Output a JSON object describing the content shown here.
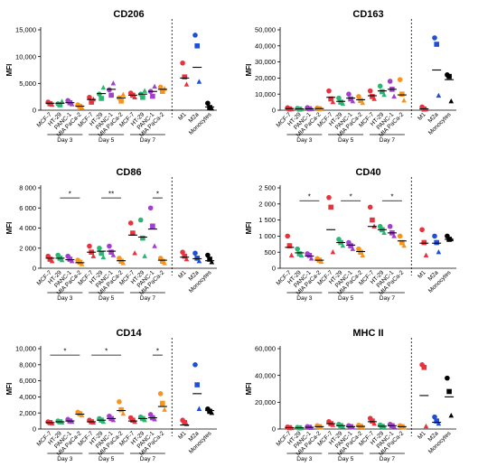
{
  "colors": {
    "MCF-7": "#e8323c",
    "HT-29": "#2bb673",
    "PANC-1": "#a23fcf",
    "MIA PaCa-2": "#f7941d",
    "M1": "#e8323c",
    "M2a": "#1f4fd6",
    "Monocytes": "#000000"
  },
  "chart_data": [
    {
      "type": "scatter",
      "title": "CD206",
      "ylabel": "MFI",
      "ylim": [
        0,
        15000
      ],
      "yticks": [
        0,
        5000,
        10000,
        15000
      ],
      "ytick_labels": [
        "0",
        "5,000",
        "10,000",
        "15,000"
      ],
      "categories": [
        "MCF-7",
        "HT-29",
        "PANC-1",
        "MIA PaCa-2"
      ],
      "groups": [
        "Day 3",
        "Day 5",
        "Day 7"
      ],
      "controls": [
        "M1",
        "M2a",
        "Monocytes"
      ],
      "points": [
        [
          [
            1500,
            1200,
            1000
          ],
          [
            1200,
            1000,
            1600
          ],
          [
            1800,
            1400,
            1100
          ],
          [
            1000,
            700,
            500
          ]
        ],
        [
          [
            2400,
            1500,
            2000
          ],
          [
            3000,
            2200,
            4200
          ],
          [
            3800,
            2800,
            5000
          ],
          [
            2300,
            1700,
            2900
          ]
        ],
        [
          [
            3200,
            2800,
            2400
          ],
          [
            3000,
            2400,
            3600
          ],
          [
            3500,
            2600,
            4400
          ],
          [
            4300,
            3500,
            4000
          ]
        ]
      ],
      "means": [
        [
          1300,
          1300,
          1400,
          750
        ],
        [
          2000,
          3100,
          3900,
          2300
        ],
        [
          2800,
          3000,
          3500,
          3900
        ]
      ],
      "ctrl_points": [
        [
          8800,
          6200,
          4800
        ],
        [
          14000,
          12000,
          5300
        ],
        [
          1300,
          500,
          300
        ]
      ],
      "ctrl_means": [
        6000,
        8000,
        600
      ],
      "sig": []
    },
    {
      "type": "scatter",
      "title": "CD163",
      "ylabel": "MFI",
      "ylim": [
        0,
        50000
      ],
      "yticks": [
        0,
        10000,
        20000,
        30000,
        40000,
        50000
      ],
      "ytick_labels": [
        "0",
        "10,000",
        "20,000",
        "30,000",
        "40,000",
        "50,000"
      ],
      "categories": [
        "MCF-7",
        "HT-29",
        "PANC-1",
        "MIA PaCa-2"
      ],
      "groups": [
        "Day 3",
        "Day 5",
        "Day 7"
      ],
      "controls": [
        "M1",
        "M2a",
        "Monocytes"
      ],
      "points": [
        [
          [
            1500,
            800,
            600
          ],
          [
            1200,
            700,
            500
          ],
          [
            1600,
            900,
            700
          ],
          [
            1400,
            900,
            700
          ]
        ],
        [
          [
            12000,
            7000,
            5000
          ],
          [
            7500,
            5000,
            4000
          ],
          [
            10000,
            7000,
            5500
          ],
          [
            8500,
            6000,
            4500
          ]
        ],
        [
          [
            12000,
            8500,
            7000
          ],
          [
            15000,
            11500,
            9500
          ],
          [
            18000,
            13000,
            8500
          ],
          [
            19000,
            10000,
            6000
          ]
        ]
      ],
      "means": [
        [
          1000,
          800,
          900,
          1000
        ],
        [
          8000,
          5500,
          7500,
          6500
        ],
        [
          9000,
          12000,
          13000,
          9500
        ]
      ],
      "ctrl_points": [
        [
          2000,
          700,
          500
        ],
        [
          45000,
          41000,
          9000
        ],
        [
          22000,
          21000,
          5500
        ]
      ],
      "ctrl_means": [
        800,
        25000,
        19000
      ],
      "sig": []
    },
    {
      "type": "scatter",
      "title": "CD86",
      "ylabel": "MFI",
      "ylim": [
        0,
        8000
      ],
      "yticks": [
        0,
        2000,
        4000,
        6000,
        8000
      ],
      "ytick_labels": [
        "0",
        "2 000",
        "4 000",
        "6 000",
        "8 000"
      ],
      "categories": [
        "MCF-7",
        "HT-29",
        "PANC-1",
        "MIA PaCa-2"
      ],
      "groups": [
        "Day 3",
        "Day 5",
        "Day 7"
      ],
      "controls": [
        "M1",
        "M2a",
        "Monocytes"
      ],
      "points": [
        [
          [
            1200,
            900,
            700
          ],
          [
            1300,
            1000,
            800
          ],
          [
            1200,
            900,
            700
          ],
          [
            800,
            600,
            400
          ]
        ],
        [
          [
            2200,
            1600,
            1200
          ],
          [
            2000,
            1500,
            1100
          ],
          [
            2200,
            1600,
            1300
          ],
          [
            1000,
            700,
            500
          ]
        ],
        [
          [
            4500,
            3500,
            1500
          ],
          [
            4800,
            3000,
            1200
          ],
          [
            6000,
            4200,
            2200
          ],
          [
            1000,
            700,
            500
          ]
        ]
      ],
      "means": [
        [
          1000,
          1000,
          850,
          550
        ],
        [
          1600,
          1700,
          1700,
          750
        ],
        [
          3300,
          3100,
          3900,
          800
        ]
      ],
      "ctrl_points": [
        [
          1600,
          1200,
          900
        ],
        [
          1500,
          1000,
          700
        ],
        [
          1300,
          900,
          600
        ]
      ],
      "ctrl_means": [
        1100,
        950,
        750
      ],
      "sig": [
        {
          "group": 0,
          "from": 1,
          "to": 3,
          "y": 7000,
          "label": "*"
        },
        {
          "group": 1,
          "from": 1,
          "to": 3,
          "y": 7000,
          "label": "**"
        },
        {
          "group": 2,
          "from": 2,
          "to": 3,
          "y": 7000,
          "label": "*"
        }
      ]
    },
    {
      "type": "scatter",
      "title": "CD40",
      "ylabel": "MFI",
      "ylim": [
        0,
        2500
      ],
      "yticks": [
        0,
        500,
        1000,
        1500,
        2000,
        2500
      ],
      "ytick_labels": [
        "0",
        "500",
        "1 000",
        "1 500",
        "2 000",
        "2 500"
      ],
      "categories": [
        "MCF-7",
        "HT-29",
        "PANC-1",
        "MIA PaCa-2"
      ],
      "groups": [
        "Day 3",
        "Day 5",
        "Day 7"
      ],
      "controls": [
        "M1",
        "M2a",
        "Monocytes"
      ],
      "points": [
        [
          [
            1000,
            700,
            400
          ],
          [
            600,
            450,
            400
          ],
          [
            450,
            400,
            300
          ],
          [
            300,
            250,
            200
          ]
        ],
        [
          [
            2200,
            1900,
            500
          ],
          [
            900,
            800,
            700
          ],
          [
            800,
            700,
            600
          ],
          [
            600,
            500,
            400
          ]
        ],
        [
          [
            1900,
            1500,
            1300
          ],
          [
            1300,
            1200,
            1100
          ],
          [
            1300,
            1100,
            1000
          ],
          [
            1000,
            800,
            700
          ]
        ]
      ],
      "means": [
        [
          650,
          480,
          380,
          250
        ],
        [
          1200,
          800,
          720,
          520
        ],
        [
          1300,
          1200,
          1100,
          850
        ]
      ],
      "ctrl_points": [
        [
          1200,
          800,
          400
        ],
        [
          1000,
          800,
          500
        ],
        [
          1000,
          900,
          900
        ]
      ],
      "ctrl_means": [
        780,
        780,
        900
      ],
      "sig": [
        {
          "group": 0,
          "from": 1,
          "to": 3,
          "y": 2100,
          "label": "*"
        },
        {
          "group": 1,
          "from": 1,
          "to": 3,
          "y": 2100,
          "label": "*"
        },
        {
          "group": 2,
          "from": 1,
          "to": 3,
          "y": 2100,
          "label": "*"
        }
      ]
    },
    {
      "type": "scatter",
      "title": "CD14",
      "ylabel": "MFI",
      "ylim": [
        0,
        10000
      ],
      "yticks": [
        0,
        2000,
        4000,
        6000,
        8000,
        10000
      ],
      "ytick_labels": [
        "0",
        "2,000",
        "4,000",
        "6,000",
        "8,000",
        "10,000"
      ],
      "categories": [
        "MCF-7",
        "HT-29",
        "PANC-1",
        "MIA PaCa-2"
      ],
      "groups": [
        "Day 3",
        "Day 5",
        "Day 7"
      ],
      "controls": [
        "M1",
        "M2a",
        "Monocytes"
      ],
      "points": [
        [
          [
            900,
            800,
            700
          ],
          [
            1000,
            900,
            800
          ],
          [
            1200,
            1000,
            900
          ],
          [
            2100,
            1900,
            1700
          ]
        ],
        [
          [
            1100,
            900,
            800
          ],
          [
            1300,
            1100,
            900
          ],
          [
            1600,
            1300,
            1100
          ],
          [
            3400,
            2400,
            1900
          ]
        ],
        [
          [
            1400,
            1100,
            900
          ],
          [
            1500,
            1300,
            1100
          ],
          [
            1800,
            1400,
            1200
          ],
          [
            4400,
            3200,
            2400
          ]
        ]
      ],
      "means": [
        [
          800,
          900,
          1000,
          1850
        ],
        [
          900,
          1100,
          1300,
          2300
        ],
        [
          1000,
          1300,
          1400,
          2800
        ]
      ],
      "ctrl_points": [
        [
          1100,
          800,
          600
        ],
        [
          8000,
          5500,
          2500
        ],
        [
          2500,
          2200,
          2000
        ]
      ],
      "ctrl_means": [
        500,
        4400,
        2300
      ],
      "sig": [
        {
          "group": 0,
          "from": 0,
          "to": 3,
          "y": 9200,
          "label": "*"
        },
        {
          "group": 1,
          "from": 0,
          "to": 3,
          "y": 9200,
          "label": "*"
        },
        {
          "group": 2,
          "from": 2,
          "to": 3,
          "y": 9200,
          "label": "*"
        }
      ]
    },
    {
      "type": "scatter",
      "title": "MHC II",
      "ylabel": "MFI",
      "ylim": [
        0,
        60000
      ],
      "yticks": [
        0,
        20000,
        40000,
        60000
      ],
      "ytick_labels": [
        "0",
        "20,000",
        "40,000",
        "60,000"
      ],
      "categories": [
        "MCF-7",
        "HT-29",
        "PANC-1",
        "MIA PaCa-2"
      ],
      "groups": [
        "Day 3",
        "Day 5",
        "Day 7"
      ],
      "controls": [
        "M1",
        "M2a",
        "Monocytes"
      ],
      "points": [
        [
          [
            1500,
            1000,
            700
          ],
          [
            1200,
            900,
            600
          ],
          [
            1800,
            1300,
            900
          ],
          [
            2500,
            1800,
            1200
          ]
        ],
        [
          [
            5500,
            4000,
            3000
          ],
          [
            3500,
            2500,
            1800
          ],
          [
            2500,
            1800,
            1300
          ],
          [
            2800,
            2000,
            1500
          ]
        ],
        [
          [
            8000,
            6000,
            4000
          ],
          [
            3000,
            2000,
            1500
          ],
          [
            3500,
            2500,
            1700
          ],
          [
            2500,
            1800,
            1200
          ]
        ]
      ],
      "means": [
        [
          1000,
          900,
          1300,
          1800
        ],
        [
          4000,
          2500,
          1800,
          2000
        ],
        [
          5500,
          2100,
          2500,
          1800
        ]
      ],
      "ctrl_points": [
        [
          48000,
          46000,
          2000
        ],
        [
          9000,
          6000,
          4000
        ],
        [
          38000,
          28000,
          10000
        ]
      ],
      "ctrl_means": [
        25000,
        5000,
        24000
      ],
      "sig": []
    }
  ]
}
